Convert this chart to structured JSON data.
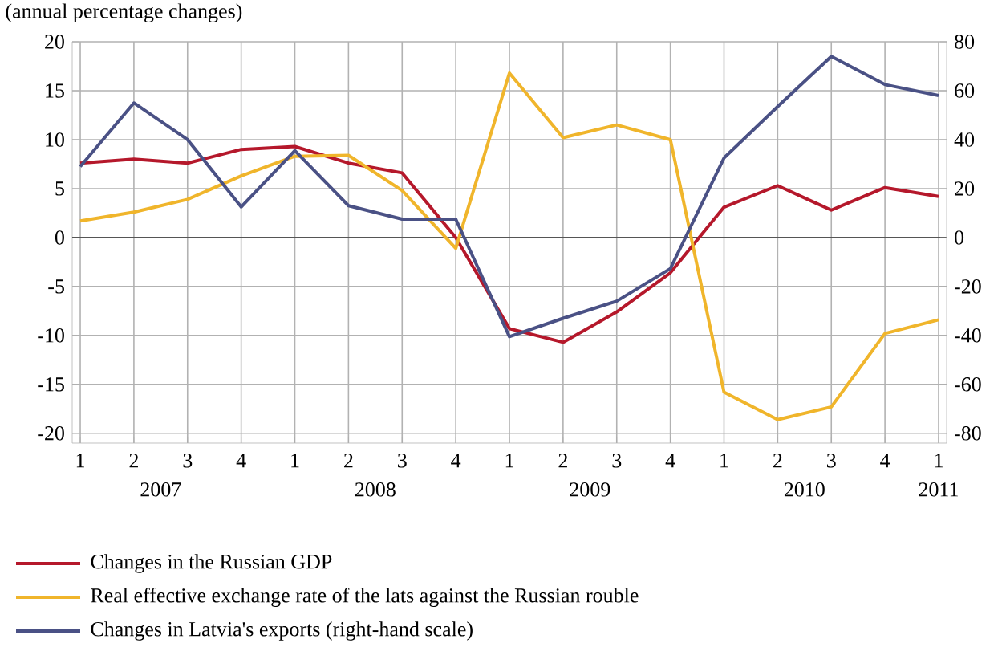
{
  "chart_data": {
    "type": "line",
    "subtitle": "(annual percentage changes)",
    "categories": [
      "1",
      "2",
      "3",
      "4",
      "1",
      "2",
      "3",
      "4",
      "1",
      "2",
      "3",
      "4",
      "1",
      "2",
      "3",
      "4",
      "1"
    ],
    "annotations": [
      "2007",
      "2008",
      "2009",
      "2010",
      "2011"
    ],
    "series": [
      {
        "name": "Changes in the Russian GDP",
        "color": "#b5182b",
        "values": [
          7.6,
          8.0,
          7.6,
          9.0,
          9.3,
          7.6,
          6.6,
          0,
          -9.3,
          -10.7,
          -7.6,
          -3.6,
          3.1,
          5.3,
          2.8,
          5.1,
          4.2
        ]
      },
      {
        "name": "Real effective exchange rate of the lats against the Russian rouble",
        "color": "#f0b52b",
        "values": [
          1.7,
          2.6,
          3.9,
          6.3,
          8.3,
          8.4,
          4.8,
          -1.1,
          16.8,
          10.2,
          11.5,
          10.0,
          -15.8,
          -18.6,
          -17.3,
          -9.8,
          -8.4
        ]
      },
      {
        "name": "Changes in Latvia's exports (right-hand scale)",
        "color": "#4a5185",
        "axis": "y2",
        "values": [
          29,
          55,
          40,
          12.5,
          35.5,
          13,
          7.5,
          7.5,
          -40.5,
          -33,
          -26,
          -12.7,
          32.5,
          53.5,
          74,
          62.5,
          58
        ]
      }
    ],
    "ylim": [
      -21,
      20
    ],
    "yticks": [
      -20,
      -15,
      -10,
      -5,
      0,
      5,
      10,
      15,
      20
    ],
    "y2lim": [
      -84,
      80
    ],
    "y2ticks": [
      -80,
      -60,
      -40,
      -20,
      0,
      20,
      40,
      60,
      80
    ],
    "ref_lines": [
      {
        "axis": "y",
        "value": 0,
        "color": "#555555"
      }
    ],
    "grid": true,
    "legend": "bottom",
    "marker": "none",
    "line_style": "solid"
  }
}
